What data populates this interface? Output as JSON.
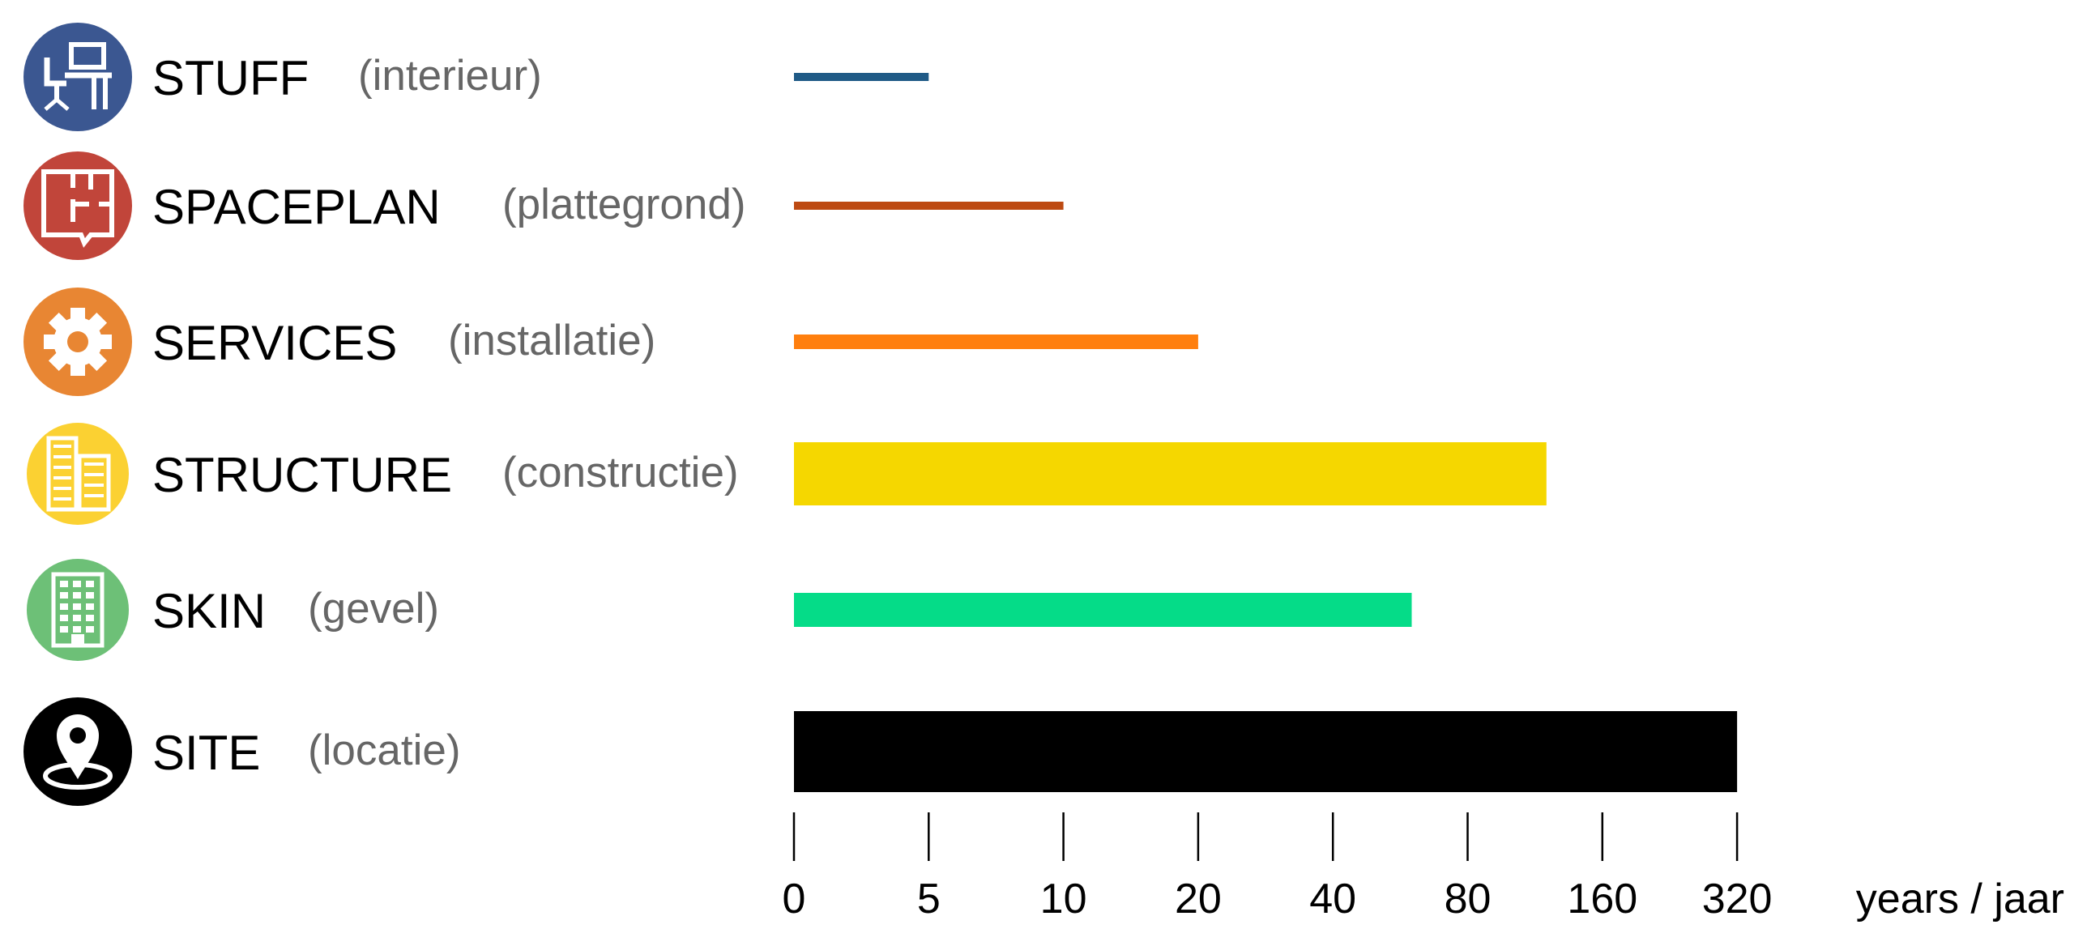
{
  "chart_data": {
    "type": "bar",
    "orientation": "horizontal",
    "axis_scale": "log2 beyond 5 (ticks 0, 5, 10, 20, 40, 80, 160, 320)",
    "xlabel": "years / jaar",
    "xticks": [
      "0",
      "5",
      "10",
      "20",
      "40",
      "80",
      "160",
      "320"
    ],
    "xlim": [
      0,
      320
    ],
    "grid": false,
    "legend": "none",
    "rows": [
      {
        "name": "STUFF",
        "subtitle": "(interieur)",
        "value": 5,
        "color": "#1f5a86",
        "icon": "desk-chair-icon",
        "icon_bg": "#3b5791",
        "weight": "thin"
      },
      {
        "name": "SPACEPLAN",
        "subtitle": "(plattegrond)",
        "value": 10,
        "color": "#bd4a12",
        "icon": "floor-plan-icon",
        "icon_bg": "#c1453a",
        "weight": "thin"
      },
      {
        "name": "SERVICES",
        "subtitle": "(installatie)",
        "value": 20,
        "color": "#ff7f0e",
        "icon": "gear-icon",
        "icon_bg": "#e88633",
        "weight": "medium"
      },
      {
        "name": "STRUCTURE",
        "subtitle": "(constructie)",
        "value": 120,
        "color": "#f5d700",
        "icon": "building-icon",
        "icon_bg": "#fbd132",
        "weight": "thick"
      },
      {
        "name": "SKIN",
        "subtitle": "(gevel)",
        "value": 60,
        "color": "#05dc88",
        "icon": "facade-icon",
        "icon_bg": "#6dc077",
        "weight": "medium-thick"
      },
      {
        "name": "SITE",
        "subtitle": "(locatie)",
        "value": 320,
        "color": "#000000",
        "icon": "location-pin-icon",
        "icon_bg": "#000000",
        "weight": "thickest"
      }
    ]
  }
}
